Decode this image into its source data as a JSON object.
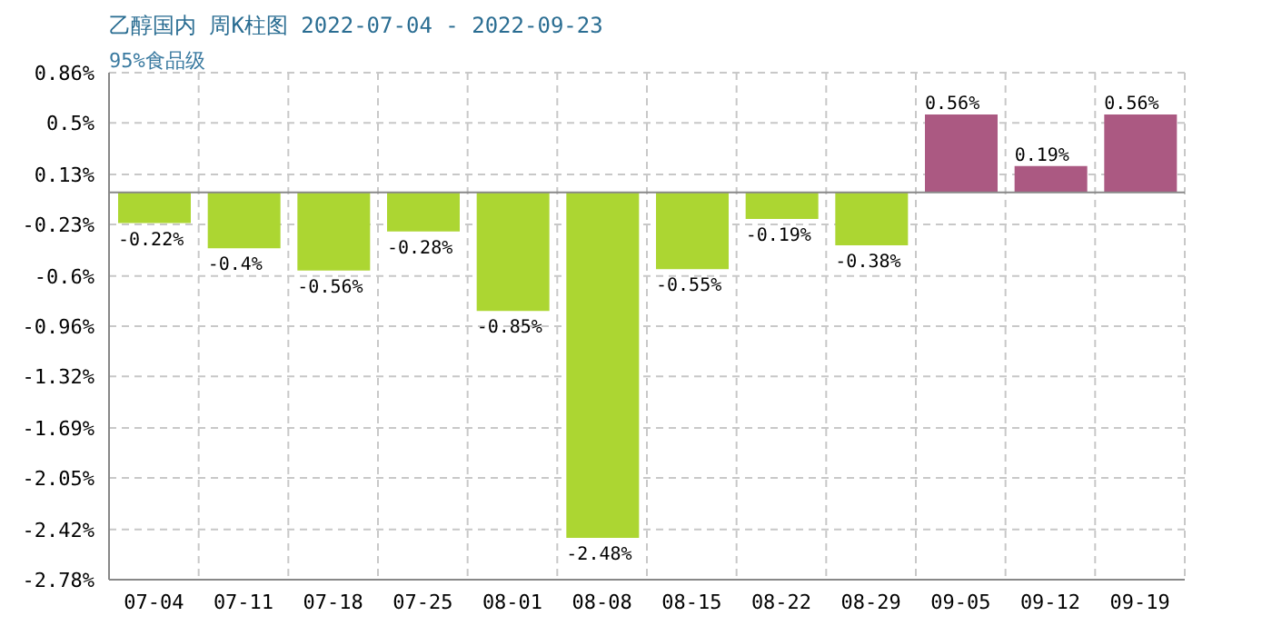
{
  "chart_data": {
    "type": "bar",
    "title": "乙醇国内 周K柱图 2022-07-04 - 2022-09-23",
    "subtitle": "95%食品级",
    "categories": [
      "07-04",
      "07-11",
      "07-18",
      "07-25",
      "08-01",
      "08-08",
      "08-15",
      "08-22",
      "08-29",
      "09-05",
      "09-12",
      "09-19"
    ],
    "values": [
      -0.22,
      -0.4,
      -0.56,
      -0.28,
      -0.85,
      -2.48,
      -0.55,
      -0.19,
      -0.38,
      0.56,
      0.19,
      0.56
    ],
    "value_labels": [
      "-0.22%",
      "-0.4%",
      "-0.56%",
      "-0.28%",
      "-0.85%",
      "-2.48%",
      "-0.55%",
      "-0.19%",
      "-0.38%",
      "0.56%",
      "0.19%",
      "0.56%"
    ],
    "colors": [
      "#acd632",
      "#acd632",
      "#acd632",
      "#acd632",
      "#acd632",
      "#acd632",
      "#acd632",
      "#acd632",
      "#acd632",
      "#ab5982",
      "#ab5982",
      "#ab5982"
    ],
    "ylim": [
      -2.78,
      0.86
    ],
    "yticks": [
      {
        "value": 0.86,
        "label": "0.86%"
      },
      {
        "value": 0.5,
        "label": "0.5%"
      },
      {
        "value": 0.13,
        "label": "0.13%"
      },
      {
        "value": -0.23,
        "label": "-0.23%"
      },
      {
        "value": -0.6,
        "label": "-0.6%"
      },
      {
        "value": -0.96,
        "label": "-0.96%"
      },
      {
        "value": -1.32,
        "label": "-1.32%"
      },
      {
        "value": -1.69,
        "label": "-1.69%"
      },
      {
        "value": -2.05,
        "label": "-2.05%"
      },
      {
        "value": -2.42,
        "label": "-2.42%"
      },
      {
        "value": -2.78,
        "label": "-2.78%"
      }
    ],
    "grid": true
  }
}
